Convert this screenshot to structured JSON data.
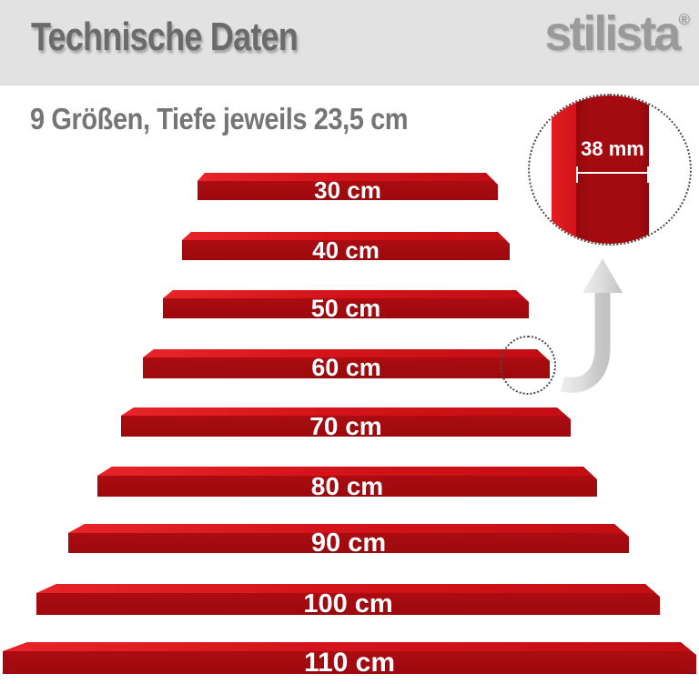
{
  "header": {
    "title": "Technische Daten",
    "logo_text": "stilista",
    "logo_registered": "®"
  },
  "intro": {
    "subtitle": "9 Größen, Tiefe jeweils 23,5 cm"
  },
  "detail_view": {
    "thickness_label": "38 mm"
  },
  "shelves": [
    {
      "label": "30 cm",
      "size_cm": 30
    },
    {
      "label": "40 cm",
      "size_cm": 40
    },
    {
      "label": "50 cm",
      "size_cm": 50
    },
    {
      "label": "60 cm",
      "size_cm": 60
    },
    {
      "label": "70 cm",
      "size_cm": 70
    },
    {
      "label": "80 cm",
      "size_cm": 80
    },
    {
      "label": "90 cm",
      "size_cm": 90
    },
    {
      "label": "100 cm",
      "size_cm": 100
    },
    {
      "label": "110 cm",
      "size_cm": 110
    }
  ],
  "depth_cm": "23,5",
  "colors": {
    "header_bg": "#e2e2e2",
    "title_gray": "#6b6b6b",
    "logo_gray": "#9a9a9a",
    "shelf_front": "#a50b10",
    "shelf_top": "#d4141a",
    "label_white": "#ffffff"
  }
}
